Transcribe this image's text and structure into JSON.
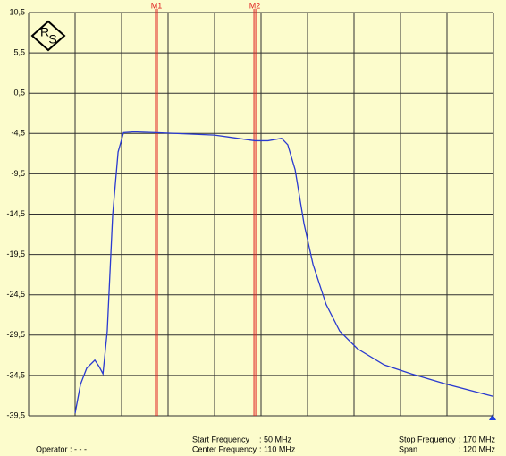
{
  "chart_data": {
    "type": "line",
    "x": [
      62,
      63.4,
      65,
      67.1,
      68.2,
      69.2,
      70.3,
      71.7,
      73.1,
      74.5,
      77.2,
      83,
      98,
      108.4,
      111.8,
      115.3,
      116.9,
      118.8,
      121.1,
      123.4,
      126.8,
      130.3,
      134.9,
      141.8,
      148.8,
      158,
      170
    ],
    "series": [
      {
        "color": "#2a3ad0",
        "values": [
          -39.2,
          -35.6,
          -33.6,
          -32.6,
          -33.4,
          -34.3,
          -29,
          -14.6,
          -6.8,
          -4.4,
          -4.3,
          -4.4,
          -4.7,
          -5.4,
          -5.4,
          -5.1,
          -5.9,
          -9,
          -15.7,
          -20.7,
          -25.7,
          -29,
          -31.2,
          -33.2,
          -34.3,
          -35.6,
          -37.1
        ]
      }
    ],
    "xlim": [
      50,
      170
    ],
    "xticks": [
      50,
      62,
      74,
      86,
      98,
      110,
      122,
      134,
      146,
      158,
      170
    ],
    "ylim": [
      -39.5,
      10.5
    ],
    "yticks": [
      {
        "value": -39.5,
        "label": "-39,5"
      },
      {
        "value": -34.5,
        "label": "-34,5"
      },
      {
        "value": -29.5,
        "label": "-29,5"
      },
      {
        "value": -24.5,
        "label": "-24,5"
      },
      {
        "value": -19.5,
        "label": "-19,5"
      },
      {
        "value": -14.5,
        "label": "-14,5"
      },
      {
        "value": -9.5,
        "label": "-9,5"
      },
      {
        "value": -4.5,
        "label": "-4,5"
      },
      {
        "value": 0.5,
        "label": "0,5"
      },
      {
        "value": 5.5,
        "label": "5,5"
      },
      {
        "value": 10.5,
        "label": "10,5"
      }
    ],
    "grid": true,
    "markers": [
      {
        "name": "M1",
        "x": 83,
        "color": "#e02020"
      },
      {
        "name": "M2",
        "x": 108.4,
        "color": "#e02020"
      }
    ],
    "logo": [
      "R",
      "S"
    ],
    "footer": {
      "operator": "Operator : - - -",
      "start_label": "Start Frequency",
      "start_value": ": 50 MHz",
      "center_label": "Center Frequency",
      "center_value": ": 110 MHz",
      "stop_label": "Stop Frequency",
      "stop_value": ": 170 MHz",
      "span_label": "Span",
      "span_value": ": 120 MHz"
    }
  }
}
